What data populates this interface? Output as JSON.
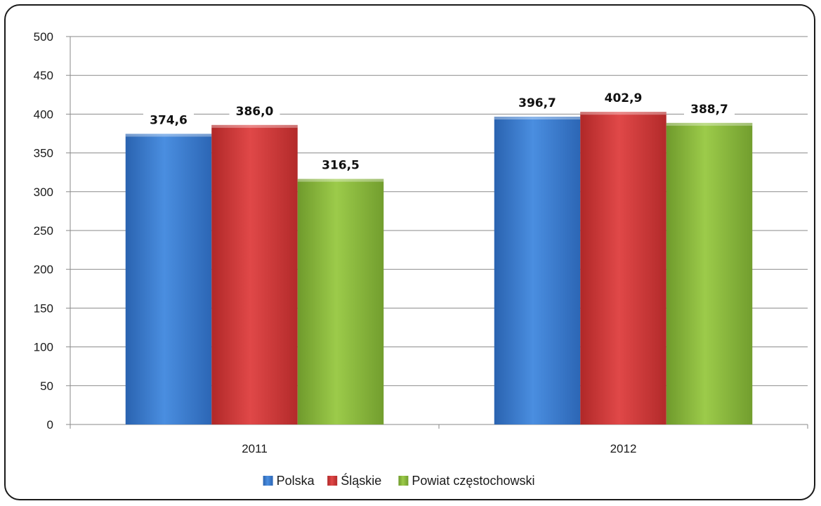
{
  "chart_data": {
    "type": "bar",
    "categories": [
      "2011",
      "2012"
    ],
    "series": [
      {
        "name": "Polska",
        "values": [
          374.6,
          396.7
        ],
        "labels": [
          "374,6",
          "396,7"
        ],
        "color": "#3d7fd1"
      },
      {
        "name": "Śląskie",
        "values": [
          386.0,
          402.9
        ],
        "labels": [
          "386,0",
          "402,9"
        ],
        "color": "#d83b3b"
      },
      {
        "name": "Powiat częstochowski",
        "values": [
          316.5,
          388.7
        ],
        "labels": [
          "316,5",
          "388,7"
        ],
        "color": "#8fc040"
      }
    ],
    "ylim": [
      0,
      500
    ],
    "yticks": [
      0,
      50,
      100,
      150,
      200,
      250,
      300,
      350,
      400,
      450,
      500
    ],
    "grid": true,
    "legend_position": "bottom"
  }
}
